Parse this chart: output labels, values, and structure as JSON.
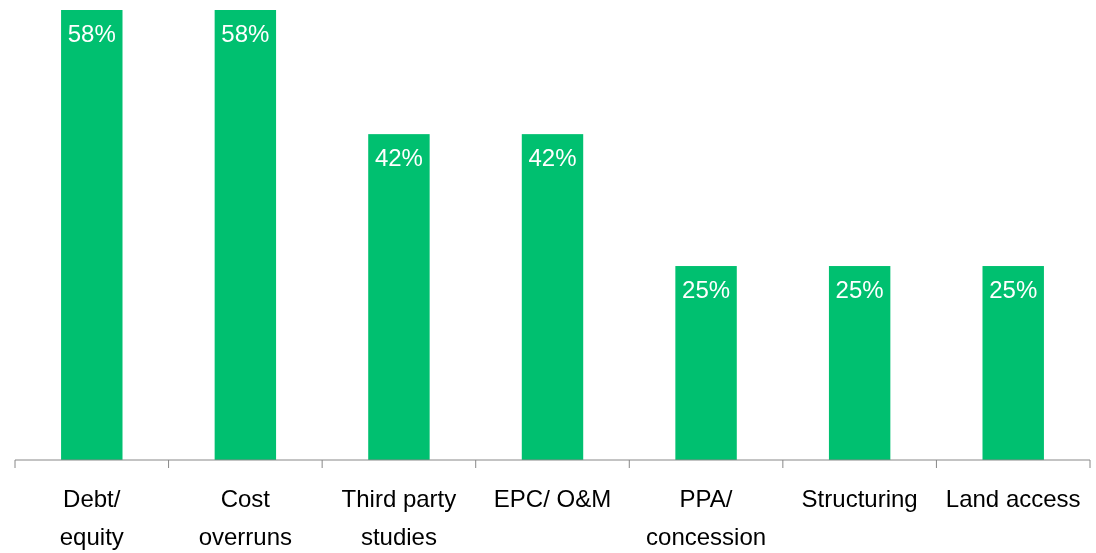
{
  "chart_data": {
    "type": "bar",
    "categories": [
      "Debt/\nequity",
      "Cost\noverruns",
      "Third party\nstudies",
      "EPC/ O&M",
      "PPA/\nconcession",
      "Structuring",
      "Land access"
    ],
    "values": [
      58,
      58,
      42,
      42,
      25,
      25,
      25
    ],
    "value_labels": [
      "58%",
      "58%",
      "42%",
      "42%",
      "25%",
      "25%",
      "25%"
    ],
    "color": "#00c070"
  }
}
